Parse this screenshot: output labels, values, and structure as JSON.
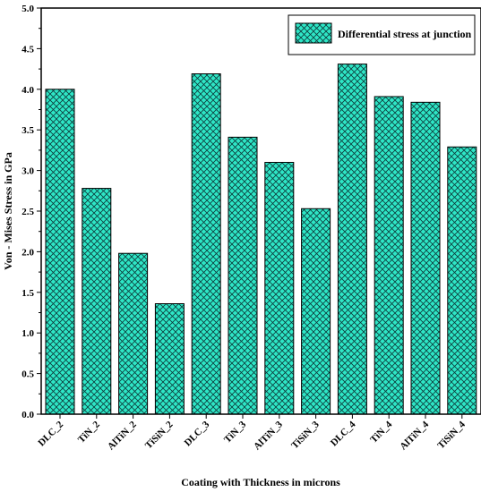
{
  "chart_data": {
    "type": "bar",
    "categories": [
      "DLC_2",
      "TiN_2",
      "AlTiN_2",
      "TiSiN_2",
      "DLC_3",
      "TiN_3",
      "AlTiN_3",
      "TiSiN_3",
      "DLC_4",
      "TiN_4",
      "AlTiN_4",
      "TiSiN_4"
    ],
    "series": [
      {
        "name": "Differential stress at junction",
        "values": [
          4.0,
          2.78,
          1.98,
          1.36,
          4.19,
          3.41,
          3.1,
          2.53,
          4.31,
          3.91,
          3.84,
          3.29
        ]
      }
    ],
    "xlabel": "Coating with Thickness in microns",
    "ylabel": "Von - Mises Stress in GPa",
    "ylim": [
      0,
      5.0
    ],
    "yticks": [
      0.0,
      0.5,
      1.0,
      1.5,
      2.0,
      2.5,
      3.0,
      3.5,
      4.0,
      4.5,
      5.0
    ],
    "ytick_labels": [
      "0.0",
      "0.5",
      "1.0",
      "1.5",
      "2.0",
      "2.5",
      "3.0",
      "3.5",
      "4.0",
      "4.5",
      "5.0"
    ],
    "grid": false,
    "legend_position": "top-right",
    "colors": {
      "bar_fill": "#2ee6c6",
      "hatch": "#0d3b3b",
      "axis": "#000000"
    },
    "bar_pattern": "crosshatch"
  }
}
